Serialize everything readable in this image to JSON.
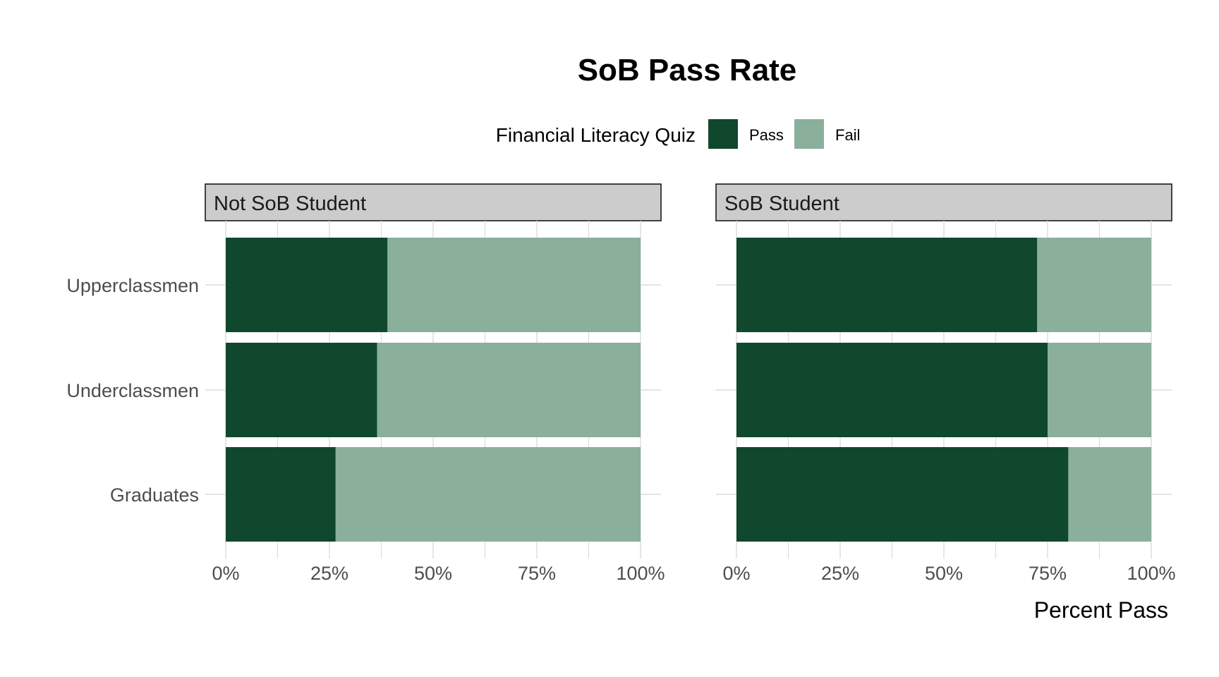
{
  "chart_data": {
    "type": "bar",
    "orientation": "horizontal",
    "stacked": true,
    "title": "SoB Pass Rate",
    "xlabel": "Percent Pass",
    "ylabel": "",
    "xlim": [
      0,
      1
    ],
    "x_ticks": [
      "0%",
      "25%",
      "50%",
      "75%",
      "100%"
    ],
    "x_tick_values": [
      0,
      0.25,
      0.5,
      0.75,
      1.0
    ],
    "legend": {
      "title": "Financial Literacy Quiz",
      "position": "top",
      "entries": [
        "Pass",
        "Fail"
      ]
    },
    "colors": {
      "Pass": "#10482d",
      "Fail": "#8aaf9b",
      "strip": "#cccccc",
      "grid": "#dcdcdc"
    },
    "categories": [
      "Upperclassmen",
      "Underclassmen",
      "Graduates"
    ],
    "panels": [
      {
        "label": "Not SoB Student",
        "series": [
          {
            "name": "Pass",
            "values": [
              0.39,
              0.365,
              0.265
            ]
          },
          {
            "name": "Fail",
            "values": [
              0.61,
              0.635,
              0.735
            ]
          }
        ]
      },
      {
        "label": "SoB Student",
        "series": [
          {
            "name": "Pass",
            "values": [
              0.725,
              0.75,
              0.8
            ]
          },
          {
            "name": "Fail",
            "values": [
              0.275,
              0.25,
              0.2
            ]
          }
        ]
      }
    ],
    "grid": true
  }
}
